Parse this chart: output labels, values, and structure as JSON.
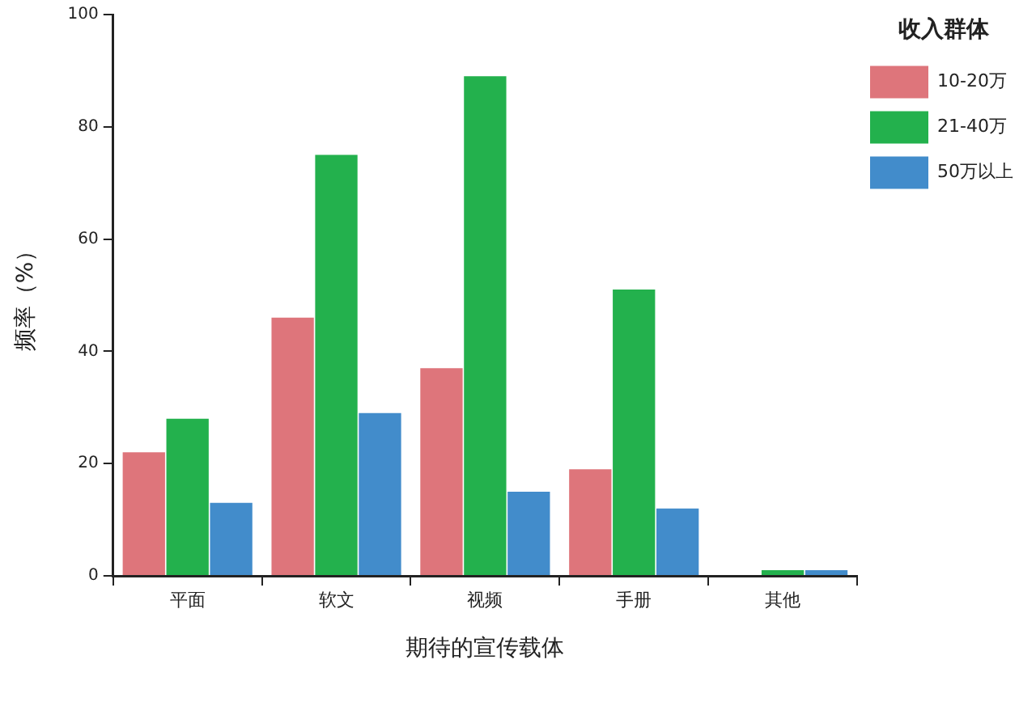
{
  "chart_data": {
    "type": "bar",
    "xlabel": "期待的宣传载体",
    "ylabel": "频率（%）",
    "legend_title": "收入群体",
    "legend": "top right",
    "grid": false,
    "categories": [
      "平面",
      "软文",
      "视频",
      "手册",
      "其他"
    ],
    "ylim": [
      0,
      100
    ],
    "yticks": [
      0,
      20,
      40,
      60,
      80,
      100
    ],
    "series": [
      {
        "name": "10-20万",
        "color": "#de757b",
        "values": [
          22,
          46,
          37,
          19,
          0
        ]
      },
      {
        "name": "21-40万",
        "color": "#23b14d",
        "values": [
          28,
          75,
          89,
          51,
          1
        ]
      },
      {
        "name": "50万以上",
        "color": "#428ccb",
        "values": [
          13,
          29,
          15,
          12,
          1
        ]
      }
    ]
  }
}
